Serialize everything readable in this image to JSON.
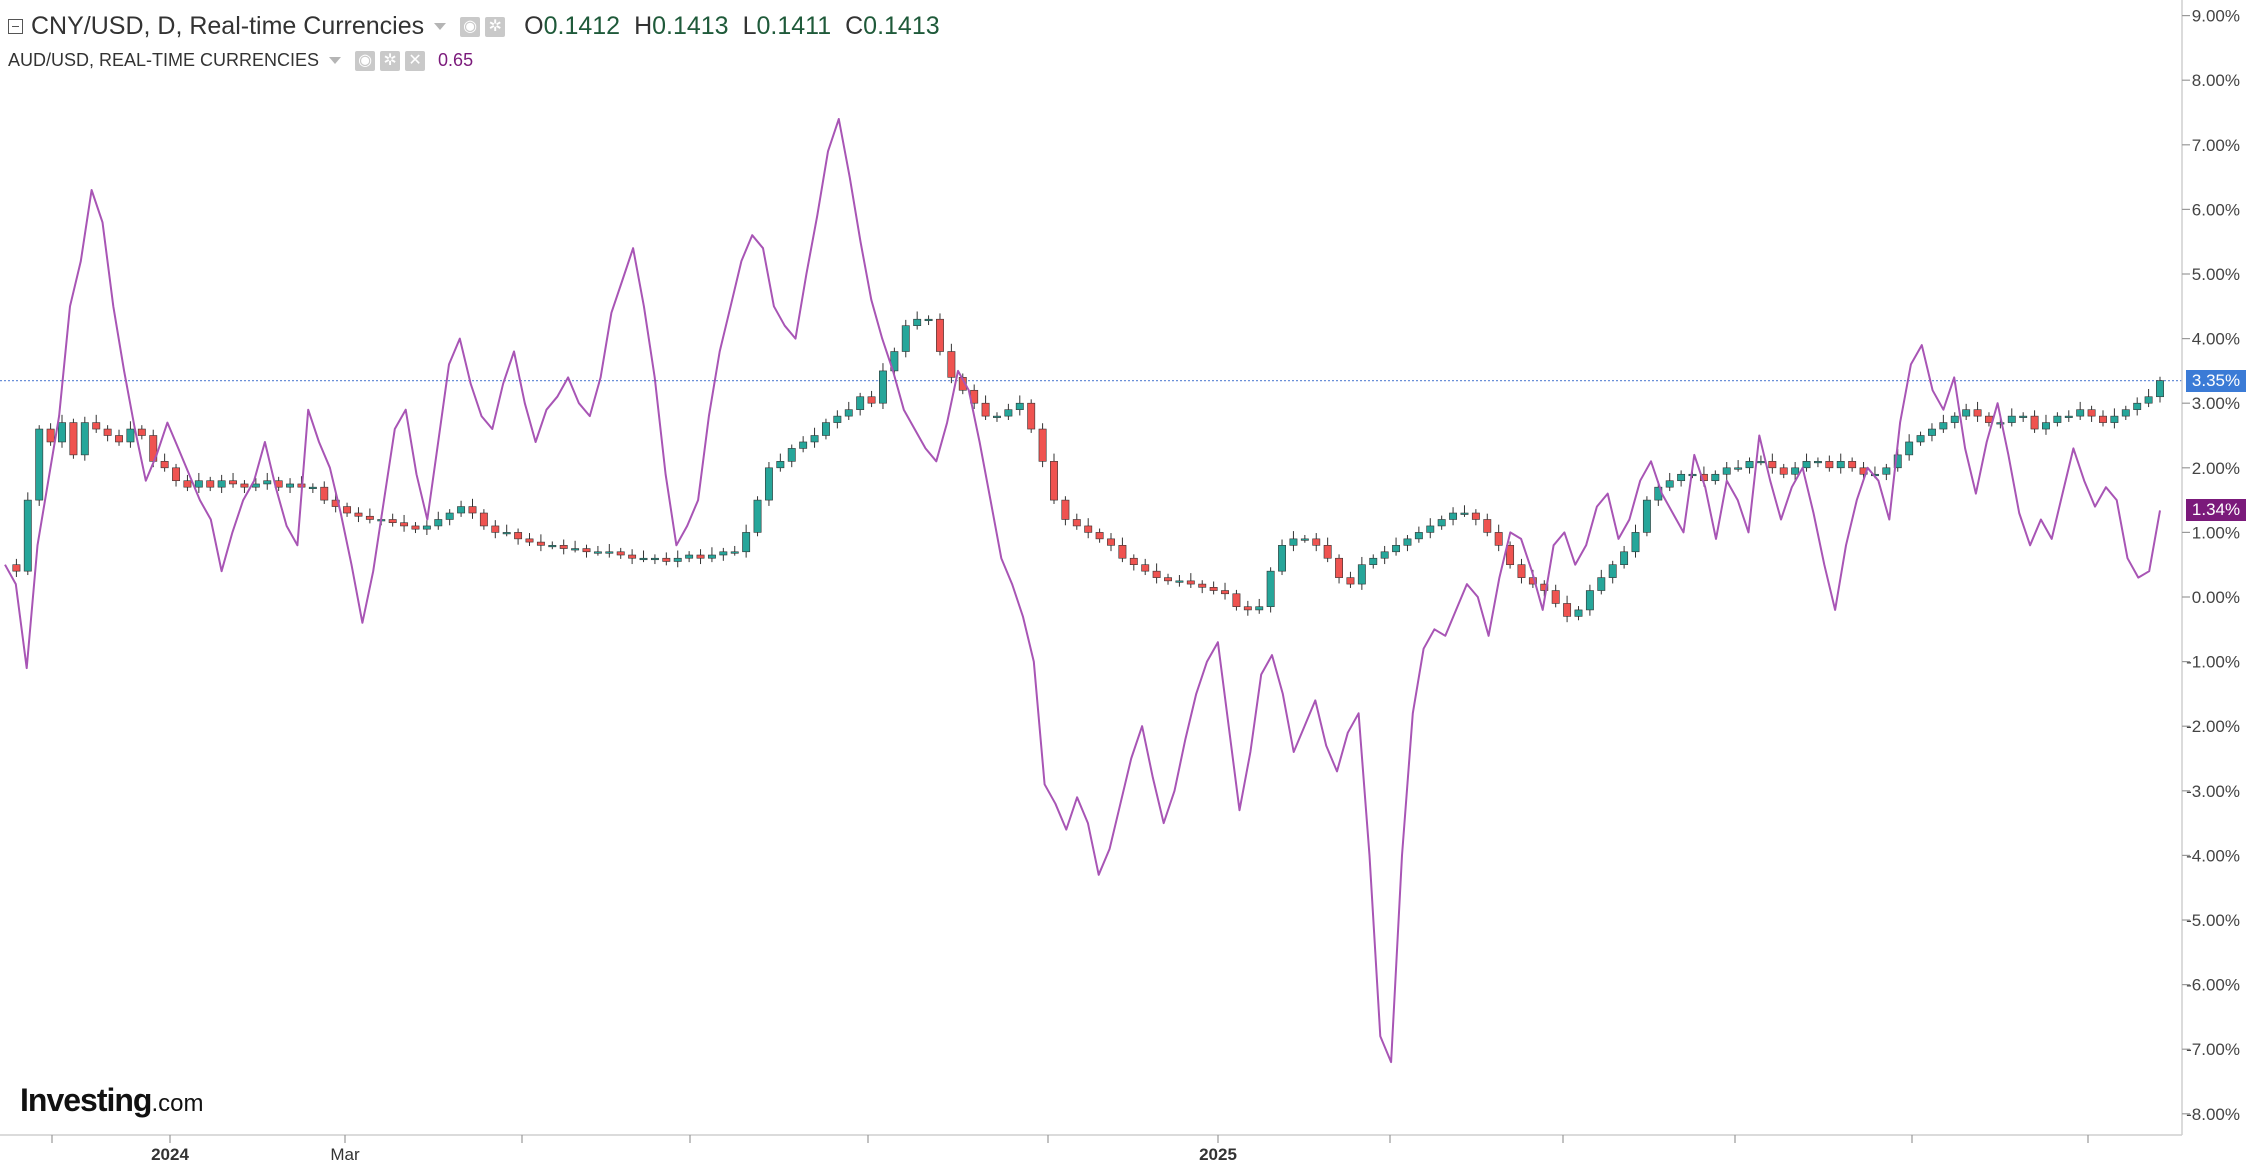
{
  "legend": {
    "main_title": "CNY/USD, D, Real-time Currencies",
    "ohlc": [
      {
        "label": "O",
        "value": "0.1412"
      },
      {
        "label": "H",
        "value": "0.1413"
      },
      {
        "label": "L",
        "value": "0.1411"
      },
      {
        "label": "C",
        "value": "0.1413"
      }
    ],
    "comparison_title": "AUD/USD, REAL-TIME CURRENCIES",
    "comparison_value": "0.65"
  },
  "logo": {
    "brand": "Investing",
    "suffix": ".com"
  },
  "icons": [
    "collapse-icon",
    "eye-icon",
    "gear-icon",
    "close-icon",
    "dropdown-caret-icon"
  ],
  "colors": {
    "up": "#26a69a",
    "down": "#ef5350",
    "aud_line": "#a855b5",
    "cny_tag": "#3b7bd6",
    "aud_tag": "#7b1a7b",
    "price_line": "#6a8fd8"
  },
  "chart_data": {
    "type": "line",
    "title": "CNY/USD, D, Real-time Currencies",
    "y_axis": {
      "format": "percent",
      "range": [
        -8.3,
        9.2
      ],
      "ticks": [
        "9.00%",
        "8.00%",
        "7.00%",
        "6.00%",
        "5.00%",
        "4.00%",
        "3.00%",
        "2.00%",
        "1.00%",
        "0.00%",
        "-1.00%",
        "-2.00%",
        "-3.00%",
        "-4.00%",
        "-5.00%",
        "-6.00%",
        "-7.00%",
        "-8.00%"
      ]
    },
    "x_axis": {
      "labels": [
        {
          "text": "2024",
          "bold": true
        },
        {
          "text": "Mar",
          "bold": false
        },
        {
          "text": "2025",
          "bold": true
        }
      ]
    },
    "last_value_tags": [
      {
        "series": "CNY/USD",
        "label": "3.35%",
        "value": 3.35
      },
      {
        "series": "AUD/USD",
        "label": "1.34%",
        "value": 1.34
      }
    ],
    "series": [
      {
        "name": "CNY/USD",
        "style": "candlestick",
        "values": [
          0.5,
          0.4,
          1.5,
          2.6,
          2.4,
          2.7,
          2.2,
          2.7,
          2.6,
          2.5,
          2.4,
          2.6,
          2.5,
          2.1,
          2.0,
          1.8,
          1.7,
          1.8,
          1.7,
          1.8,
          1.75,
          1.7,
          1.75,
          1.8,
          1.7,
          1.75,
          1.7,
          1.7,
          1.5,
          1.4,
          1.3,
          1.25,
          1.2,
          1.2,
          1.15,
          1.1,
          1.05,
          1.1,
          1.2,
          1.3,
          1.4,
          1.3,
          1.1,
          1.0,
          1.0,
          0.9,
          0.85,
          0.8,
          0.8,
          0.75,
          0.75,
          0.7,
          0.7,
          0.7,
          0.65,
          0.6,
          0.6,
          0.6,
          0.55,
          0.6,
          0.65,
          0.6,
          0.65,
          0.7,
          0.7,
          1.0,
          1.5,
          2.0,
          2.1,
          2.3,
          2.4,
          2.5,
          2.7,
          2.8,
          2.9,
          3.1,
          3.0,
          3.5,
          3.8,
          4.2,
          4.3,
          4.3,
          3.8,
          3.4,
          3.2,
          3.0,
          2.8,
          2.8,
          2.9,
          3.0,
          2.6,
          2.1,
          1.5,
          1.2,
          1.1,
          1.0,
          0.9,
          0.8,
          0.6,
          0.5,
          0.4,
          0.3,
          0.25,
          0.25,
          0.2,
          0.15,
          0.1,
          0.05,
          -0.15,
          -0.2,
          -0.15,
          0.4,
          0.8,
          0.9,
          0.9,
          0.8,
          0.6,
          0.3,
          0.2,
          0.5,
          0.6,
          0.7,
          0.8,
          0.9,
          1.0,
          1.1,
          1.2,
          1.3,
          1.3,
          1.2,
          1.0,
          0.8,
          0.5,
          0.3,
          0.2,
          0.1,
          -0.1,
          -0.3,
          -0.2,
          0.1,
          0.3,
          0.5,
          0.7,
          1.0,
          1.5,
          1.7,
          1.8,
          1.9,
          1.9,
          1.8,
          1.9,
          2.0,
          2.0,
          2.1,
          2.1,
          2.0,
          1.9,
          2.0,
          2.1,
          2.1,
          2.0,
          2.1,
          2.0,
          1.9,
          1.9,
          2.0,
          2.2,
          2.4,
          2.5,
          2.6,
          2.7,
          2.8,
          2.9,
          2.8,
          2.7,
          2.7,
          2.8,
          2.8,
          2.6,
          2.7,
          2.8,
          2.8,
          2.9,
          2.8,
          2.7,
          2.8,
          2.9,
          3.0,
          3.1,
          3.35
        ]
      },
      {
        "name": "AUD/USD",
        "style": "line",
        "values": [
          0.5,
          0.2,
          -1.1,
          0.8,
          1.8,
          2.8,
          4.5,
          5.2,
          6.3,
          5.8,
          4.5,
          3.5,
          2.6,
          1.8,
          2.2,
          2.7,
          2.3,
          1.9,
          1.5,
          1.2,
          0.4,
          1.0,
          1.5,
          1.8,
          2.4,
          1.7,
          1.1,
          0.8,
          2.9,
          2.4,
          2.0,
          1.3,
          0.5,
          -0.4,
          0.4,
          1.5,
          2.6,
          2.9,
          1.9,
          1.2,
          2.4,
          3.6,
          4.0,
          3.3,
          2.8,
          2.6,
          3.3,
          3.8,
          3.0,
          2.4,
          2.9,
          3.1,
          3.4,
          3.0,
          2.8,
          3.4,
          4.4,
          4.9,
          5.4,
          4.5,
          3.4,
          1.9,
          0.8,
          1.1,
          1.5,
          2.8,
          3.8,
          4.5,
          5.2,
          5.6,
          5.4,
          4.5,
          4.2,
          4.0,
          5.0,
          5.9,
          6.9,
          7.4,
          6.5,
          5.5,
          4.6,
          4.0,
          3.5,
          2.9,
          2.6,
          2.3,
          2.1,
          2.7,
          3.5,
          3.2,
          2.4,
          1.5,
          0.6,
          0.2,
          -0.3,
          -1.0,
          -2.9,
          -3.2,
          -3.6,
          -3.1,
          -3.5,
          -4.3,
          -3.9,
          -3.2,
          -2.5,
          -2.0,
          -2.8,
          -3.5,
          -3.0,
          -2.2,
          -1.5,
          -1.0,
          -0.7,
          -2.0,
          -3.3,
          -2.4,
          -1.2,
          -0.9,
          -1.5,
          -2.4,
          -2.0,
          -1.6,
          -2.3,
          -2.7,
          -2.1,
          -1.8,
          -4.0,
          -6.8,
          -7.2,
          -4.0,
          -1.8,
          -0.8,
          -0.5,
          -0.6,
          -0.2,
          0.2,
          0.0,
          -0.6,
          0.3,
          1.0,
          0.9,
          0.4,
          -0.2,
          0.8,
          1.0,
          0.5,
          0.8,
          1.4,
          1.6,
          0.9,
          1.2,
          1.8,
          2.1,
          1.6,
          1.3,
          1.0,
          2.2,
          1.7,
          0.9,
          1.8,
          1.5,
          1.0,
          2.5,
          1.8,
          1.2,
          1.7,
          2.0,
          1.3,
          0.5,
          -0.2,
          0.8,
          1.5,
          2.0,
          1.8,
          1.2,
          2.7,
          3.6,
          3.9,
          3.2,
          2.9,
          3.4,
          2.3,
          1.6,
          2.4,
          3.0,
          2.2,
          1.3,
          0.8,
          1.2,
          0.9,
          1.6,
          2.3,
          1.8,
          1.4,
          1.7,
          1.5,
          0.6,
          0.3,
          0.4,
          1.34
        ]
      }
    ]
  }
}
